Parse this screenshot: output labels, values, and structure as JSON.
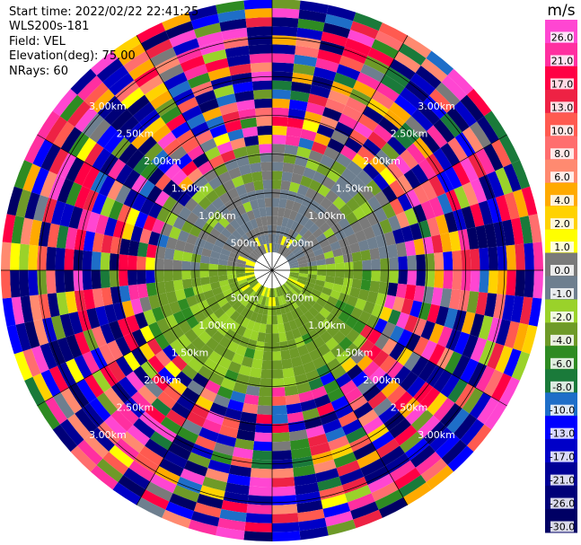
{
  "info": {
    "start_time": "Start time: 2022/02/22 22:41:25",
    "instrument": "WLS200s-181",
    "field": "Field: VEL",
    "elevation": "Elevation(deg): 75.00",
    "nrays": "NRays: 60"
  },
  "chart_data": {
    "type": "heatmap",
    "projection": "polar",
    "field": "VEL",
    "nrays": 60,
    "gate_count": 30,
    "max_range_m": 3500,
    "range_rings": [
      {
        "range": 500,
        "label": "500m"
      },
      {
        "range": 1000,
        "label": "1.00km"
      },
      {
        "range": 1500,
        "label": "1.50km"
      },
      {
        "range": 2000,
        "label": "2.00km"
      },
      {
        "range": 2500,
        "label": "2.50km"
      },
      {
        "range": 3000,
        "label": "3.00km"
      }
    ],
    "spokes_deg": [
      0,
      30,
      60,
      90,
      120,
      150,
      180,
      210,
      240,
      270,
      300,
      330
    ],
    "colorbar": {
      "unit": "m/s",
      "range": [
        -30,
        30
      ],
      "tick_labels": [
        "26.0",
        "21.0",
        "17.0",
        "13.0",
        "10.0",
        "8.0",
        "6.0",
        "4.0",
        "2.0",
        "1.0",
        "0.0",
        "-1.0",
        "-2.0",
        "-4.0",
        "-6.0",
        "-8.0",
        "-10.0",
        "-13.0",
        "-17.0",
        "-21.0",
        "-26.0",
        "-30.0"
      ],
      "bins": [
        {
          "min": 26,
          "max": 30,
          "color": "#ff46d2"
        },
        {
          "min": 21,
          "max": 26,
          "color": "#ff2fa0"
        },
        {
          "min": 17,
          "max": 21,
          "color": "#ff0044"
        },
        {
          "min": 13,
          "max": 17,
          "color": "#ee2244"
        },
        {
          "min": 10,
          "max": 13,
          "color": "#ff5a50"
        },
        {
          "min": 8,
          "max": 10,
          "color": "#ff6e6e"
        },
        {
          "min": 6,
          "max": 8,
          "color": "#ff8a70"
        },
        {
          "min": 4,
          "max": 6,
          "color": "#ffaa00"
        },
        {
          "min": 2,
          "max": 4,
          "color": "#ffd200"
        },
        {
          "min": 1,
          "max": 2,
          "color": "#ffff00"
        },
        {
          "min": 0,
          "max": 1,
          "color": "#7a7a7a"
        },
        {
          "min": -1,
          "max": 0,
          "color": "#6e7f8f"
        },
        {
          "min": -2,
          "max": -1,
          "color": "#9ad22a"
        },
        {
          "min": -4,
          "max": -2,
          "color": "#6e9a28"
        },
        {
          "min": -6,
          "max": -4,
          "color": "#2e8b22"
        },
        {
          "min": -8,
          "max": -6,
          "color": "#1a7a3a"
        },
        {
          "min": -10,
          "max": -8,
          "color": "#1e6ec8"
        },
        {
          "min": -13,
          "max": -10,
          "color": "#0000ff"
        },
        {
          "min": -17,
          "max": -13,
          "color": "#0000c8"
        },
        {
          "min": -21,
          "max": -17,
          "color": "#000096"
        },
        {
          "min": -26,
          "max": -21,
          "color": "#000078"
        },
        {
          "min": -30,
          "max": -26,
          "color": "#000064"
        }
      ]
    }
  }
}
